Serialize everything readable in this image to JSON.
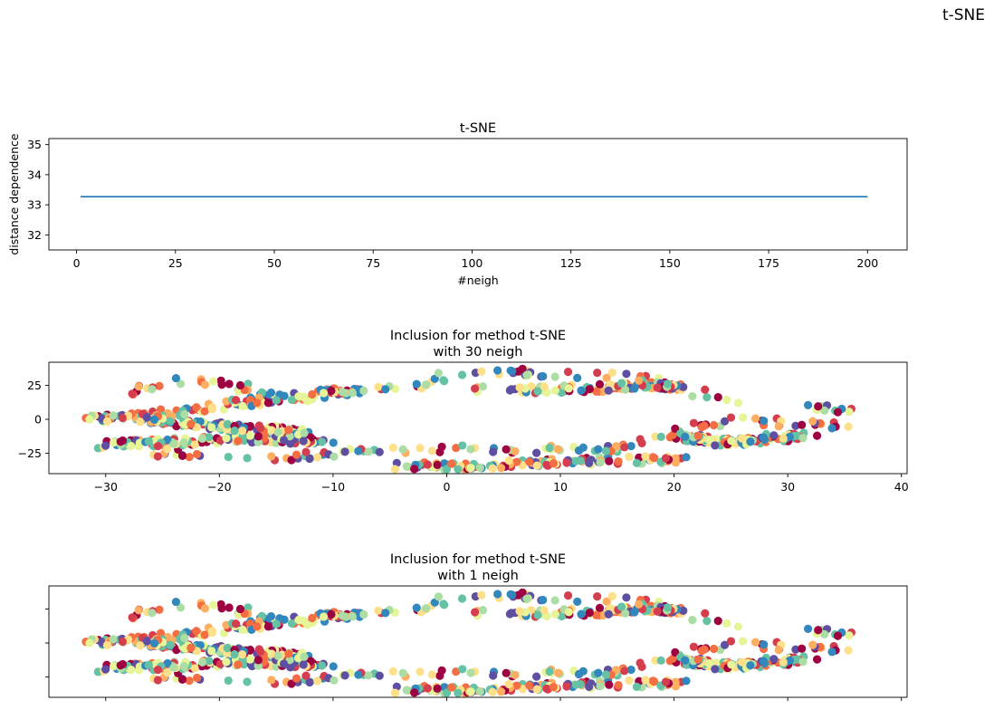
{
  "figure": {
    "suptitle": "t-SNE"
  },
  "colormap": [
    "#9e0142",
    "#d53e4f",
    "#f46d43",
    "#fdae61",
    "#fee08b",
    "#e6f598",
    "#abdda4",
    "#66c2a5",
    "#3288bd",
    "#5e4fa2"
  ],
  "chart_data": [
    {
      "type": "line",
      "title": "t-SNE",
      "xlabel": "#neigh",
      "ylabel": "distance dependence",
      "xlim": [
        -7,
        210
      ],
      "ylim": [
        31.5,
        35.2
      ],
      "xticks": [
        0,
        25,
        50,
        75,
        100,
        125,
        150,
        175,
        200
      ],
      "yticks": [
        32,
        33,
        34,
        35
      ],
      "color": "#1f77b4",
      "grid": false,
      "series": [
        {
          "x": [
            1,
            200
          ],
          "y": [
            33.27,
            33.27
          ]
        }
      ]
    },
    {
      "type": "scatter",
      "title": "Inclusion for method t-SNE\nwith 30 neigh",
      "xlabel": "",
      "ylabel": "",
      "xlim": [
        -35,
        40.5
      ],
      "ylim": [
        -40,
        42
      ],
      "xticks": [
        -30,
        -20,
        -10,
        0,
        10,
        20,
        30,
        40
      ],
      "yticks": [
        -25,
        0,
        25
      ],
      "grid": false,
      "colormap": "Spectral",
      "point_count": 1000
    },
    {
      "type": "scatter",
      "title": "Inclusion for method t-SNE\nwith 1 neigh",
      "xlabel": "",
      "ylabel": "",
      "xlim": [
        -35,
        40.5
      ],
      "ylim": [
        -40,
        42
      ],
      "xticks": [
        -30,
        -20,
        -10,
        0,
        10,
        20,
        30,
        40
      ],
      "yticks": [
        -25,
        0,
        25
      ],
      "show_tick_labels": false,
      "grid": false,
      "colormap": "Spectral",
      "point_count": 1000
    }
  ]
}
